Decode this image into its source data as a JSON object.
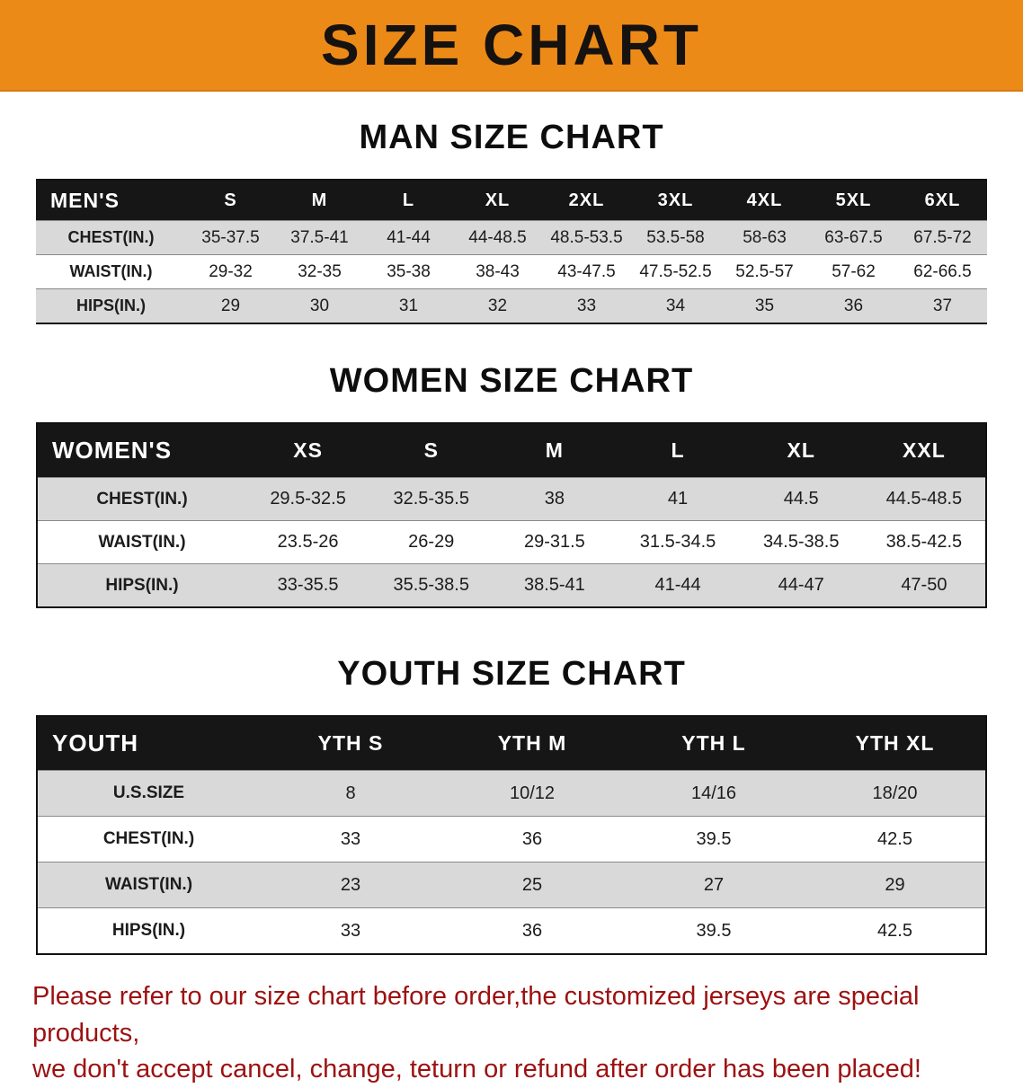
{
  "banner": {
    "title": "SIZE CHART",
    "bg_color": "#EC8A18",
    "text_color": "#151210"
  },
  "sections": {
    "men": {
      "title": "MAN SIZE CHART",
      "table": {
        "header": [
          "MEN'S",
          "S",
          "M",
          "L",
          "XL",
          "2XL",
          "3XL",
          "4XL",
          "5XL",
          "6XL"
        ],
        "rows": [
          [
            "CHEST(IN.)",
            "35-37.5",
            "37.5-41",
            "41-44",
            "44-48.5",
            "48.5-53.5",
            "53.5-58",
            "58-63",
            "63-67.5",
            "67.5-72"
          ],
          [
            "WAIST(IN.)",
            "29-32",
            "32-35",
            "35-38",
            "38-43",
            "43-47.5",
            "47.5-52.5",
            "52.5-57",
            "57-62",
            "62-66.5"
          ],
          [
            "HIPS(IN.)",
            "29",
            "30",
            "31",
            "32",
            "33",
            "34",
            "35",
            "36",
            "37"
          ]
        ]
      }
    },
    "women": {
      "title": "WOMEN SIZE CHART",
      "table": {
        "header": [
          "WOMEN'S",
          "XS",
          "S",
          "M",
          "L",
          "XL",
          "XXL"
        ],
        "rows": [
          [
            "CHEST(IN.)",
            "29.5-32.5",
            "32.5-35.5",
            "38",
            "41",
            "44.5",
            "44.5-48.5"
          ],
          [
            "WAIST(IN.)",
            "23.5-26",
            "26-29",
            "29-31.5",
            "31.5-34.5",
            "34.5-38.5",
            "38.5-42.5"
          ],
          [
            "HIPS(IN.)",
            "33-35.5",
            "35.5-38.5",
            "38.5-41",
            "41-44",
            "44-47",
            "47-50"
          ]
        ]
      }
    },
    "youth": {
      "title": "YOUTH SIZE CHART",
      "table": {
        "header": [
          "YOUTH",
          "YTH S",
          "YTH M",
          "YTH L",
          "YTH XL"
        ],
        "rows": [
          [
            "U.S.SIZE",
            "8",
            "10/12",
            "14/16",
            "18/20"
          ],
          [
            "CHEST(IN.)",
            "33",
            "36",
            "39.5",
            "42.5"
          ],
          [
            "WAIST(IN.)",
            "23",
            "25",
            "27",
            "29"
          ],
          [
            "HIPS(IN.)",
            "33",
            "36",
            "39.5",
            "42.5"
          ]
        ]
      }
    }
  },
  "footer": {
    "line1": "Please refer to our size chart before order,the customized jerseys are special products,",
    "line2": "we don't accept cancel, change, teturn or refund after order has been placed!",
    "text_color": "#9d1111"
  }
}
